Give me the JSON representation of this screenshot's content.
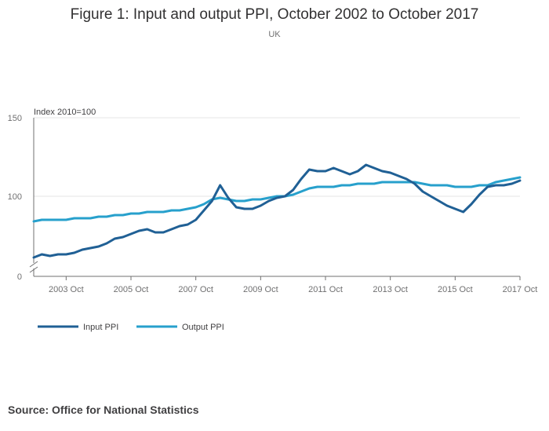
{
  "chart_data": {
    "type": "line",
    "title": "Figure 1: Input and output PPI, October 2002 to October 2017",
    "subtitle": "UK",
    "ylabel": "Index 2010=100",
    "ylim": [
      0,
      150
    ],
    "yticks": [
      0,
      100,
      150
    ],
    "ytick_labels": [
      "0",
      "100",
      "150"
    ],
    "axis_break": true,
    "xlim": [
      2002.75,
      2017.75
    ],
    "xticks": [
      {
        "x": 2003.75,
        "label": "2003 Oct"
      },
      {
        "x": 2005.75,
        "label": "2005 Oct"
      },
      {
        "x": 2007.75,
        "label": "2007 Oct"
      },
      {
        "x": 2009.75,
        "label": "2009 Oct"
      },
      {
        "x": 2011.75,
        "label": "2011 Oct"
      },
      {
        "x": 2013.75,
        "label": "2013 Oct"
      },
      {
        "x": 2015.75,
        "label": "2015 Oct"
      },
      {
        "x": 2017.75,
        "label": "2017 Oct"
      }
    ],
    "legend_position": "bottom-left",
    "series": [
      {
        "name": "Input PPI",
        "color": "#206095",
        "points": [
          [
            2002.75,
            61
          ],
          [
            2003.0,
            63
          ],
          [
            2003.25,
            62
          ],
          [
            2003.5,
            63
          ],
          [
            2003.75,
            63
          ],
          [
            2004.0,
            64
          ],
          [
            2004.25,
            66
          ],
          [
            2004.5,
            67
          ],
          [
            2004.75,
            68
          ],
          [
            2005.0,
            70
          ],
          [
            2005.25,
            73
          ],
          [
            2005.5,
            74
          ],
          [
            2005.75,
            76
          ],
          [
            2006.0,
            78
          ],
          [
            2006.25,
            79
          ],
          [
            2006.5,
            77
          ],
          [
            2006.75,
            77
          ],
          [
            2007.0,
            79
          ],
          [
            2007.25,
            81
          ],
          [
            2007.5,
            82
          ],
          [
            2007.75,
            85
          ],
          [
            2008.0,
            91
          ],
          [
            2008.25,
            97
          ],
          [
            2008.5,
            107
          ],
          [
            2008.75,
            99
          ],
          [
            2009.0,
            93
          ],
          [
            2009.25,
            92
          ],
          [
            2009.5,
            92
          ],
          [
            2009.75,
            94
          ],
          [
            2010.0,
            97
          ],
          [
            2010.25,
            99
          ],
          [
            2010.5,
            100
          ],
          [
            2010.75,
            104
          ],
          [
            2011.0,
            111
          ],
          [
            2011.25,
            117
          ],
          [
            2011.5,
            116
          ],
          [
            2011.75,
            116
          ],
          [
            2012.0,
            118
          ],
          [
            2012.25,
            116
          ],
          [
            2012.5,
            114
          ],
          [
            2012.75,
            116
          ],
          [
            2013.0,
            120
          ],
          [
            2013.25,
            118
          ],
          [
            2013.5,
            116
          ],
          [
            2013.75,
            115
          ],
          [
            2014.0,
            113
          ],
          [
            2014.25,
            111
          ],
          [
            2014.5,
            108
          ],
          [
            2014.75,
            103
          ],
          [
            2015.0,
            100
          ],
          [
            2015.25,
            97
          ],
          [
            2015.5,
            94
          ],
          [
            2015.75,
            92
          ],
          [
            2016.0,
            90
          ],
          [
            2016.25,
            95
          ],
          [
            2016.5,
            101
          ],
          [
            2016.75,
            106
          ],
          [
            2017.0,
            107
          ],
          [
            2017.25,
            107
          ],
          [
            2017.5,
            108
          ],
          [
            2017.75,
            110
          ]
        ]
      },
      {
        "name": "Output PPI",
        "color": "#27a0cc",
        "points": [
          [
            2002.75,
            84
          ],
          [
            2003.0,
            85
          ],
          [
            2003.25,
            85
          ],
          [
            2003.5,
            85
          ],
          [
            2003.75,
            85
          ],
          [
            2004.0,
            86
          ],
          [
            2004.25,
            86
          ],
          [
            2004.5,
            86
          ],
          [
            2004.75,
            87
          ],
          [
            2005.0,
            87
          ],
          [
            2005.25,
            88
          ],
          [
            2005.5,
            88
          ],
          [
            2005.75,
            89
          ],
          [
            2006.0,
            89
          ],
          [
            2006.25,
            90
          ],
          [
            2006.5,
            90
          ],
          [
            2006.75,
            90
          ],
          [
            2007.0,
            91
          ],
          [
            2007.25,
            91
          ],
          [
            2007.5,
            92
          ],
          [
            2007.75,
            93
          ],
          [
            2008.0,
            95
          ],
          [
            2008.25,
            98
          ],
          [
            2008.5,
            99
          ],
          [
            2008.75,
            98
          ],
          [
            2009.0,
            97
          ],
          [
            2009.25,
            97
          ],
          [
            2009.5,
            98
          ],
          [
            2009.75,
            98
          ],
          [
            2010.0,
            99
          ],
          [
            2010.25,
            100
          ],
          [
            2010.5,
            100
          ],
          [
            2010.75,
            101
          ],
          [
            2011.0,
            103
          ],
          [
            2011.25,
            105
          ],
          [
            2011.5,
            106
          ],
          [
            2011.75,
            106
          ],
          [
            2012.0,
            106
          ],
          [
            2012.25,
            107
          ],
          [
            2012.5,
            107
          ],
          [
            2012.75,
            108
          ],
          [
            2013.0,
            108
          ],
          [
            2013.25,
            108
          ],
          [
            2013.5,
            109
          ],
          [
            2013.75,
            109
          ],
          [
            2014.0,
            109
          ],
          [
            2014.25,
            109
          ],
          [
            2014.5,
            109
          ],
          [
            2014.75,
            108
          ],
          [
            2015.0,
            107
          ],
          [
            2015.25,
            107
          ],
          [
            2015.5,
            107
          ],
          [
            2015.75,
            106
          ],
          [
            2016.0,
            106
          ],
          [
            2016.25,
            106
          ],
          [
            2016.5,
            107
          ],
          [
            2016.75,
            107
          ],
          [
            2017.0,
            109
          ],
          [
            2017.25,
            110
          ],
          [
            2017.5,
            111
          ],
          [
            2017.75,
            112
          ]
        ]
      }
    ]
  },
  "source": "Source: Office for National Statistics"
}
